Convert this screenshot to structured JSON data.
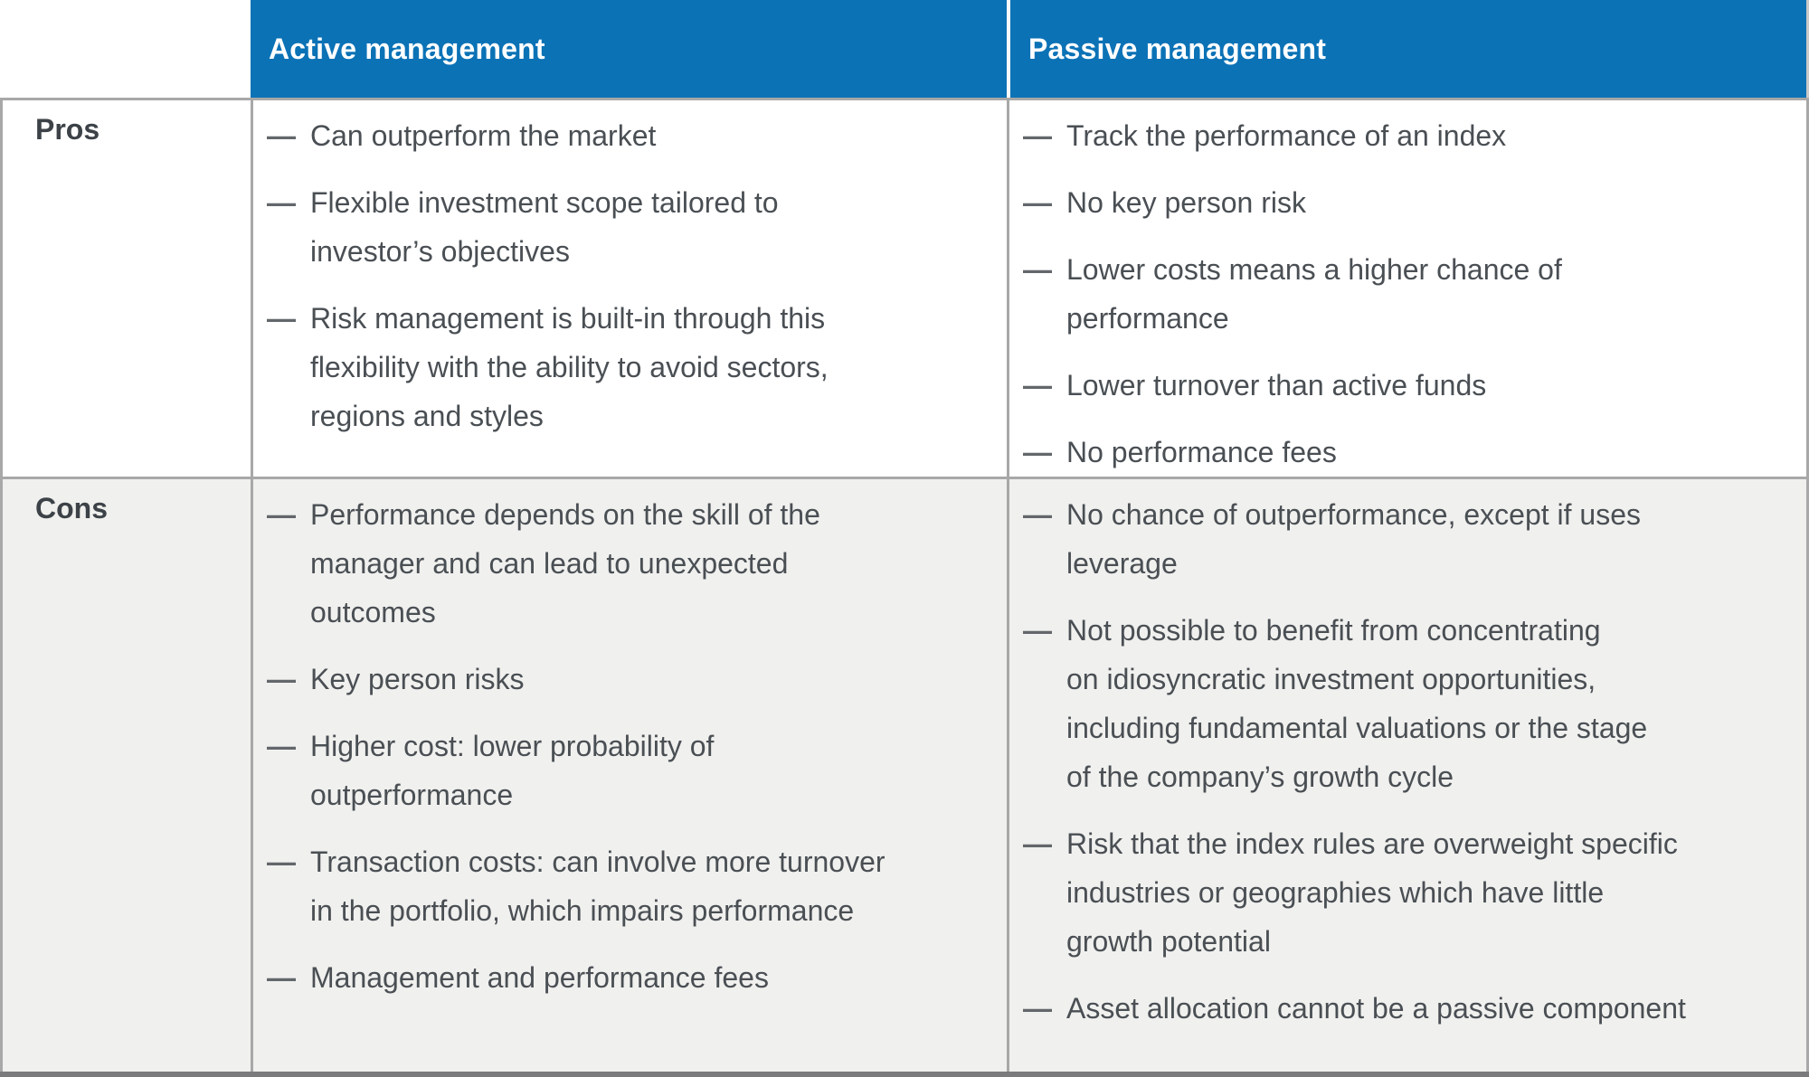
{
  "table": {
    "columns": [
      {
        "id": "row-label",
        "label": ""
      },
      {
        "id": "active",
        "label": "Active management"
      },
      {
        "id": "passive",
        "label": "Passive management"
      }
    ],
    "bullet_char": "—",
    "rows": [
      {
        "label": "Pros",
        "active": [
          "Can outperform the market",
          "Flexible investment scope tailored to\ninvestor’s objectives",
          "Risk management is built-in through this\nflexibility with the ability to avoid sectors,\nregions and styles"
        ],
        "passive": [
          "Track the performance of an index",
          "No key person risk",
          "Lower costs means a higher chance of\nperformance",
          "Lower turnover than active funds",
          "No performance fees"
        ]
      },
      {
        "label": "Cons",
        "active": [
          "Performance depends on the skill of the\nmanager and can lead to unexpected\noutcomes",
          "Key person risks",
          "Higher cost: lower probability of\noutperformance",
          "Transaction costs: can involve more turnover\nin the portfolio, which impairs performance",
          "Management and performance fees"
        ],
        "passive": [
          "No chance of outperformance, except if uses\nleverage",
          "Not possible to benefit from concentrating\non idiosyncratic investment opportunities,\nincluding fundamental valuations or the stage\nof the company’s growth cycle",
          "Risk that the index rules are overweight specific\nindustries or geographies which have little\ngrowth potential",
          "Asset allocation cannot be a passive component"
        ]
      }
    ],
    "colors": {
      "header_bg": "#0b72b6",
      "header_text": "#ffffff",
      "row_bg": "#ffffff",
      "row_alt_bg": "#f0f0ee",
      "border": "#a8a8a8",
      "border_bottom": "#7b7b7d",
      "header_gap": "#fbfbfb",
      "header_right_border": "#c9c9c9",
      "label_text": "#3c4247",
      "body_text": "#4a4f54",
      "bullet_color": "#63676b"
    }
  }
}
